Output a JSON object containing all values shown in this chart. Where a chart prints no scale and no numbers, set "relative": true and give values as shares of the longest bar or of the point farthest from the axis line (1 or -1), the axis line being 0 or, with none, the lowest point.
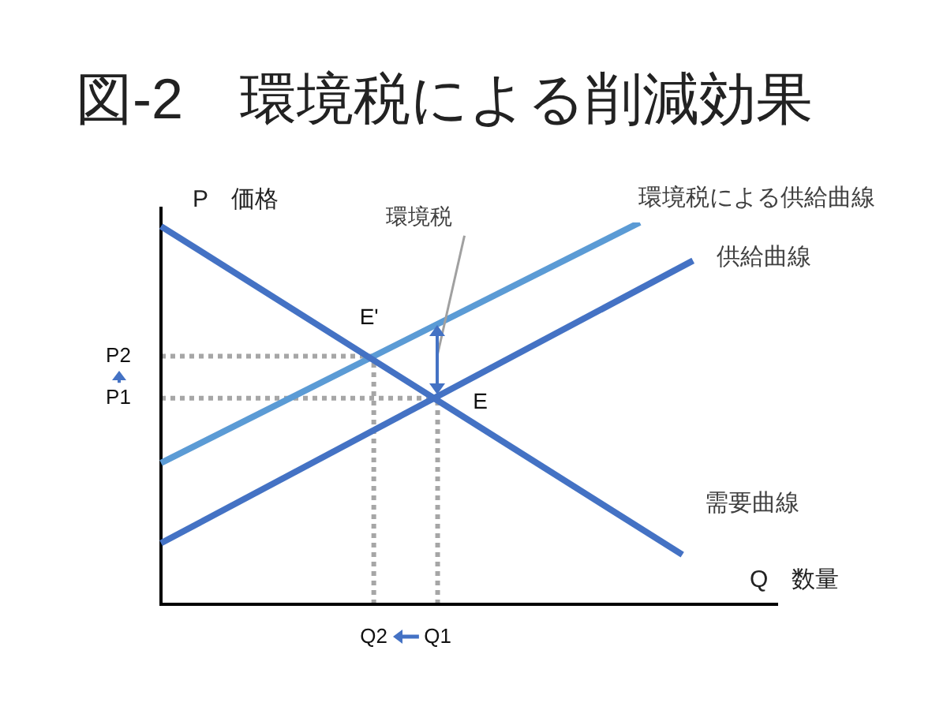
{
  "chart_data": {
    "type": "line",
    "title": "図-2　環境税による削減効果",
    "xlabel": "Q　数量",
    "ylabel": "P　価格",
    "relative": true,
    "categories": [
      null,
      null,
      null,
      null,
      null,
      null,
      null,
      null,
      null,
      null,
      null,
      null,
      null,
      null,
      null,
      null,
      null,
      null,
      null,
      null,
      "Q2",
      null,
      null,
      null,
      null,
      null,
      "Q1",
      null,
      null,
      null,
      null,
      null,
      null,
      null,
      null,
      null,
      null,
      null,
      null,
      null,
      null,
      null,
      null,
      null,
      null,
      null,
      null,
      null,
      null,
      null,
      null,
      null,
      null,
      null,
      null,
      null,
      null,
      null,
      null
    ],
    "series": [
      {
        "name": "需要曲線",
        "color": "#4472c4",
        "values": [
          0.99,
          null,
          null,
          null,
          null,
          null,
          null,
          null,
          null,
          null,
          null,
          null,
          null,
          null,
          null,
          null,
          null,
          null,
          null,
          null,
          null,
          null,
          null,
          null,
          null,
          null,
          null,
          null,
          null,
          null,
          null,
          null,
          null,
          null,
          null,
          null,
          null,
          null,
          null,
          null,
          null,
          null,
          null,
          null,
          null,
          null,
          null,
          null,
          null,
          0.13,
          null,
          null,
          null,
          null,
          null,
          null,
          null,
          null,
          null
        ]
      },
      {
        "name": "供給曲線",
        "color": "#4472c4",
        "values": [
          0.16,
          null,
          null,
          null,
          null,
          null,
          null,
          null,
          null,
          null,
          null,
          null,
          null,
          null,
          null,
          null,
          null,
          null,
          null,
          null,
          null,
          null,
          null,
          null,
          null,
          null,
          null,
          null,
          null,
          null,
          null,
          null,
          null,
          null,
          null,
          null,
          null,
          null,
          null,
          null,
          null,
          null,
          null,
          null,
          null,
          null,
          null,
          null,
          null,
          null,
          0.9,
          null,
          null,
          null,
          null,
          null,
          null,
          null,
          null
        ]
      },
      {
        "name": "環境税による供給曲線",
        "color": "#5b9bd5",
        "values": [
          0.37,
          null,
          null,
          null,
          null,
          null,
          null,
          null,
          null,
          null,
          null,
          null,
          null,
          null,
          null,
          null,
          null,
          null,
          null,
          null,
          null,
          null,
          null,
          null,
          null,
          null,
          null,
          null,
          null,
          null,
          null,
          null,
          null,
          null,
          null,
          null,
          null,
          null,
          null,
          null,
          null,
          null,
          null,
          null,
          null,
          1,
          null,
          null,
          null,
          null,
          null,
          null,
          null,
          null,
          null,
          null,
          null,
          null,
          null
        ]
      }
    ],
    "ref_lines": [
      {
        "axis": "y",
        "value": 0.65,
        "label": "P2",
        "color": "#a6a6a6",
        "line_style": "dotted"
      },
      {
        "axis": "x",
        "value": "Q2",
        "color": "#a6a6a6",
        "line_style": "dotted"
      },
      {
        "axis": "y",
        "value": 0.54,
        "label": "P1",
        "color": "#a6a6a6",
        "line_style": "dotted"
      },
      {
        "axis": "x",
        "value": "Q1",
        "color": "#a6a6a6",
        "line_style": "dotted"
      }
    ],
    "annotations": [
      {
        "text": "E'",
        "x": "Q2",
        "y": 0.65
      },
      {
        "text": "E",
        "x": "Q1",
        "y": 0.54
      },
      "環境税"
    ]
  }
}
